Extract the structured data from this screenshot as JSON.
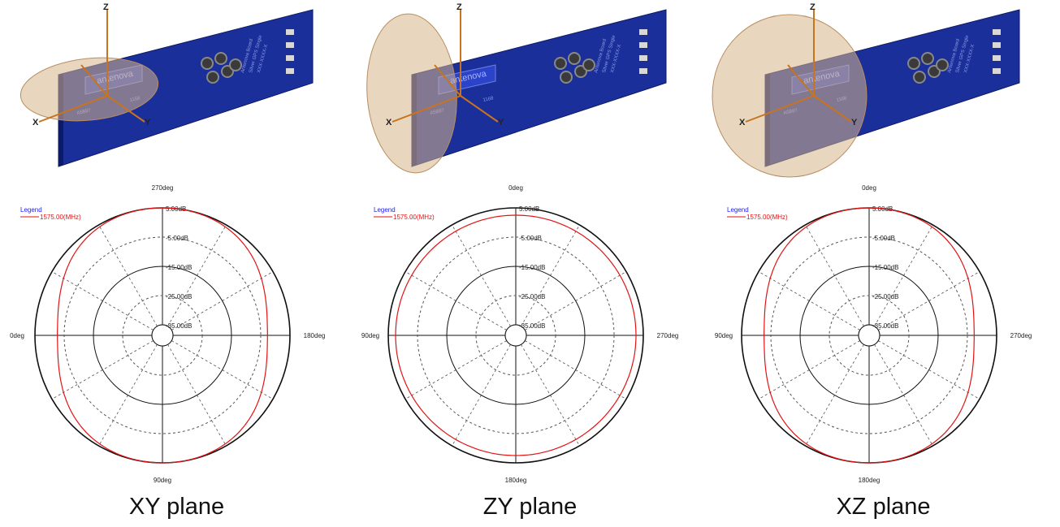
{
  "colors": {
    "board": "#1b2f9a",
    "board_edge": "#0d1a66",
    "lobe": "#d7b48a",
    "axis": "#c8741e",
    "trace": "#e01414",
    "legend_title": "#1c1cf0"
  },
  "chart_data": [
    {
      "type": "polar-line",
      "caption": "XY plane",
      "legend_title": "Legend",
      "series": [
        {
          "name": "1575.00(MHz)",
          "shape": "peanut"
        }
      ],
      "angle_labels": {
        "top": "270deg",
        "right": "180deg",
        "bottom": "90deg",
        "left": "0deg"
      },
      "radial_ticks": [
        "5.00dB",
        "-5.00dB",
        "-15.00dB",
        "-25.00dB",
        "-35.00dB"
      ],
      "radial_range": [
        -35,
        5
      ],
      "grid": true,
      "board": {
        "label": "antenova",
        "side_text": [
          "Antenova Board",
          "Silver GPS Single",
          "XXX-XXXX-X"
        ],
        "chip_labels": [
          "A5887",
          "1168"
        ]
      }
    },
    {
      "type": "polar-line",
      "caption": "ZY plane",
      "legend_title": "Legend",
      "series": [
        {
          "name": "1575.00(MHz)",
          "shape": "circle"
        }
      ],
      "angle_labels": {
        "top": "0deg",
        "right": "270deg",
        "bottom": "180deg",
        "left": "90deg"
      },
      "radial_ticks": [
        "5.00dB",
        "-5.00dB",
        "-15.00dB",
        "-25.00dB",
        "-35.00dB"
      ],
      "radial_range": [
        -35,
        5
      ],
      "grid": true,
      "board": {
        "label": "antenova",
        "side_text": [
          "Antenova Board",
          "Silver GPS Single",
          "XXX-XXXX-X"
        ],
        "chip_labels": [
          "A5887",
          "1168"
        ]
      }
    },
    {
      "type": "polar-line",
      "caption": "XZ plane",
      "legend_title": "Legend",
      "series": [
        {
          "name": "1575.00(MHz)",
          "shape": "peanut"
        }
      ],
      "angle_labels": {
        "top": "0deg",
        "right": "270deg",
        "bottom": "180deg",
        "left": "90deg"
      },
      "radial_ticks": [
        "5.00dB",
        "-5.00dB",
        "-15.00dB",
        "-25.00dB",
        "-35.00dB"
      ],
      "radial_range": [
        -35,
        5
      ],
      "grid": true,
      "board": {
        "label": "antenova",
        "side_text": [
          "Antenova Board",
          "Silver GPS Single",
          "XXX-XXXX-X"
        ],
        "chip_labels": [
          "A5887",
          "1168"
        ]
      }
    }
  ]
}
